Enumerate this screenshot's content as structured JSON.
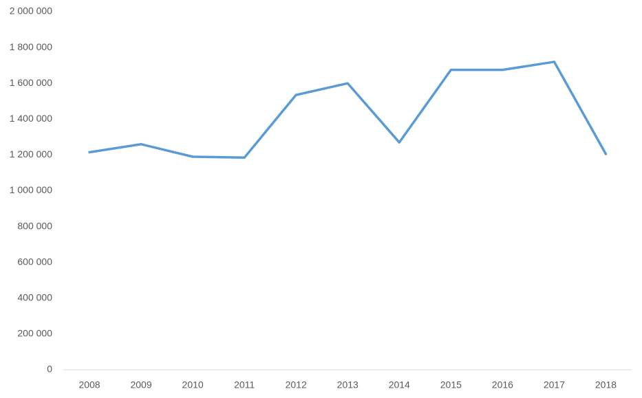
{
  "chart_data": {
    "type": "line",
    "categories": [
      "2008",
      "2009",
      "2010",
      "2011",
      "2012",
      "2013",
      "2014",
      "2015",
      "2016",
      "2017",
      "2018"
    ],
    "values": [
      1215000,
      1260000,
      1190000,
      1185000,
      1535000,
      1600000,
      1270000,
      1675000,
      1675000,
      1720000,
      1205000
    ],
    "color": "#5b9bd5",
    "ylim": [
      0,
      2000000
    ],
    "yticks": [
      0,
      {
        "value": 200000,
        "label": "200 000"
      },
      {
        "value": 400000,
        "label": "400 000"
      },
      {
        "value": 600000,
        "label": "600 000"
      },
      {
        "value": 800000,
        "label": "800 000"
      },
      {
        "value": 1000000,
        "label": "1 000 000"
      },
      {
        "value": 1200000,
        "label": "1 200 000"
      },
      {
        "value": 1400000,
        "label": "1 400 000"
      },
      {
        "value": 1600000,
        "label": "1 600 000"
      },
      {
        "value": 1800000,
        "label": "1 800 000"
      },
      {
        "value": 2000000,
        "label": "2 000 000"
      }
    ],
    "grid": false
  }
}
